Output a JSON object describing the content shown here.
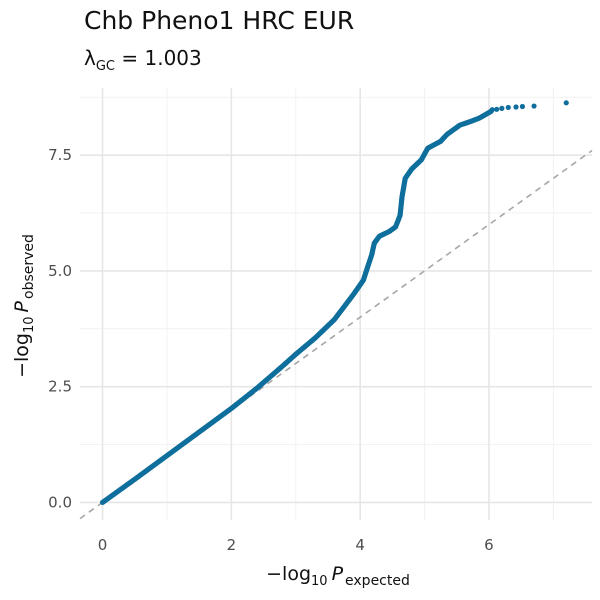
{
  "title": "Chb Pheno1 HRC EUR",
  "subtitle": {
    "symbol": "λ",
    "symbol_sub": "GC",
    "equals": " = ",
    "value": "1.003"
  },
  "chart_data": {
    "type": "scatter",
    "title": "Chb Pheno1 HRC EUR",
    "subtitle": "λGC = 1.003",
    "xlabel": {
      "prefix": "−log",
      "sub": "10",
      "var": "P",
      "var_sub": "expected"
    },
    "ylabel": {
      "prefix": "−log",
      "sub": "10",
      "var": "P",
      "var_sub": "observed"
    },
    "xlim": [
      -0.35,
      7.6
    ],
    "ylim": [
      -0.38,
      8.95
    ],
    "x_ticks": [
      0,
      2,
      4,
      6
    ],
    "x_tick_labels": [
      "0",
      "2",
      "4",
      "6"
    ],
    "y_ticks": [
      0,
      2.5,
      5,
      7.5
    ],
    "y_tick_labels": [
      "0.0",
      "2.5",
      "5.0",
      "7.5"
    ],
    "grid": true,
    "reference_line": {
      "slope": 1,
      "intercept": 0,
      "style": "dashed",
      "color": "#a6a6a6"
    },
    "point_color": "#0f6e9c",
    "series": [
      {
        "points": [
          [
            0,
            0
          ],
          [
            0.5,
            0.5
          ],
          [
            1.0,
            1.01
          ],
          [
            1.5,
            1.52
          ],
          [
            2.0,
            2.03
          ],
          [
            2.4,
            2.47
          ],
          [
            2.8,
            2.95
          ],
          [
            3.0,
            3.2
          ],
          [
            3.3,
            3.55
          ],
          [
            3.6,
            3.95
          ],
          [
            3.9,
            4.5
          ],
          [
            4.05,
            4.8
          ],
          [
            4.12,
            5.1
          ],
          [
            4.18,
            5.35
          ],
          [
            4.22,
            5.6
          ],
          [
            4.3,
            5.75
          ],
          [
            4.45,
            5.85
          ],
          [
            4.55,
            5.95
          ],
          [
            4.62,
            6.2
          ],
          [
            4.65,
            6.6
          ],
          [
            4.7,
            7.0
          ],
          [
            4.8,
            7.2
          ],
          [
            4.95,
            7.4
          ],
          [
            5.05,
            7.65
          ],
          [
            5.25,
            7.8
          ],
          [
            5.35,
            7.95
          ],
          [
            5.55,
            8.15
          ],
          [
            5.7,
            8.22
          ],
          [
            5.85,
            8.3
          ],
          [
            5.95,
            8.38
          ],
          [
            6.05,
            8.46
          ],
          [
            6.15,
            8.5
          ],
          [
            6.3,
            8.53
          ],
          [
            6.42,
            8.54
          ],
          [
            6.52,
            8.55
          ],
          [
            6.7,
            8.56
          ],
          [
            7.2,
            8.63
          ]
        ],
        "isolated_points": [
          [
            6.05,
            8.48
          ],
          [
            6.12,
            8.49
          ],
          [
            6.2,
            8.51
          ],
          [
            6.3,
            8.53
          ],
          [
            6.42,
            8.54
          ],
          [
            6.52,
            8.55
          ],
          [
            6.7,
            8.56
          ],
          [
            7.2,
            8.63
          ]
        ]
      }
    ]
  }
}
